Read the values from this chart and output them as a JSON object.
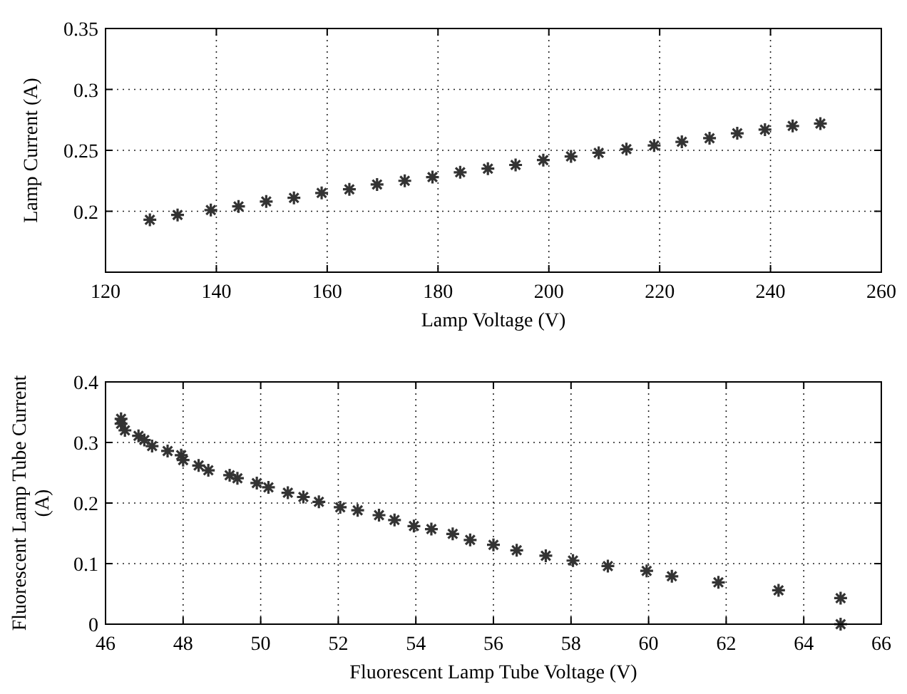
{
  "chart_data": [
    {
      "type": "scatter",
      "xlabel": "Lamp Voltage (V)",
      "ylabel": "Lamp Current (A)",
      "xlim": [
        120,
        260
      ],
      "xticks": [
        120,
        140,
        160,
        180,
        200,
        220,
        240,
        260
      ],
      "ylim": [
        0.15,
        0.35
      ],
      "yticks": [
        0.2,
        0.25,
        0.3,
        0.35
      ],
      "grid": true,
      "marker": "cross",
      "series": [
        {
          "color": "#333333",
          "x": [
            128,
            133,
            139,
            144,
            149,
            154,
            159,
            164,
            169,
            174,
            179,
            184,
            189,
            194,
            199,
            204,
            209,
            214,
            219,
            224,
            229,
            234,
            239,
            244,
            249
          ],
          "values": [
            0.193,
            0.197,
            0.201,
            0.204,
            0.208,
            0.211,
            0.215,
            0.218,
            0.222,
            0.225,
            0.228,
            0.232,
            0.235,
            0.238,
            0.242,
            0.245,
            0.248,
            0.251,
            0.254,
            0.257,
            0.26,
            0.264,
            0.267,
            0.27,
            0.272
          ]
        }
      ]
    },
    {
      "type": "scatter",
      "xlabel": "Fluorescent Lamp Tube Voltage (V)",
      "ylabel": "Fluorescent Lamp Tube Current (A)",
      "xlim": [
        46,
        66
      ],
      "xticks": [
        46,
        48,
        50,
        52,
        54,
        56,
        58,
        60,
        62,
        64,
        66
      ],
      "ylim": [
        0,
        0.4
      ],
      "yticks": [
        0,
        0.1,
        0.2,
        0.3,
        0.4
      ],
      "grid": true,
      "marker": "cross",
      "series": [
        {
          "color": "#333333",
          "x": [
            46.4,
            46.4,
            46.5,
            46.85,
            47.0,
            47.2,
            47.6,
            47.95,
            48.0,
            48.4,
            48.65,
            49.2,
            49.4,
            49.9,
            50.2,
            50.7,
            51.1,
            51.5,
            52.05,
            52.5,
            53.05,
            53.45,
            53.95,
            54.4,
            54.95,
            55.4,
            56.0,
            56.6,
            57.35,
            58.05,
            58.95,
            59.95,
            60.6,
            61.8,
            63.35,
            64.95,
            64.95
          ],
          "values": [
            0.339,
            0.331,
            0.32,
            0.311,
            0.304,
            0.294,
            0.286,
            0.279,
            0.271,
            0.262,
            0.254,
            0.246,
            0.241,
            0.233,
            0.226,
            0.217,
            0.21,
            0.202,
            0.193,
            0.188,
            0.18,
            0.172,
            0.162,
            0.157,
            0.149,
            0.139,
            0.131,
            0.122,
            0.113,
            0.105,
            0.096,
            0.088,
            0.079,
            0.069,
            0.056,
            0.043,
            0.0
          ]
        }
      ]
    }
  ]
}
